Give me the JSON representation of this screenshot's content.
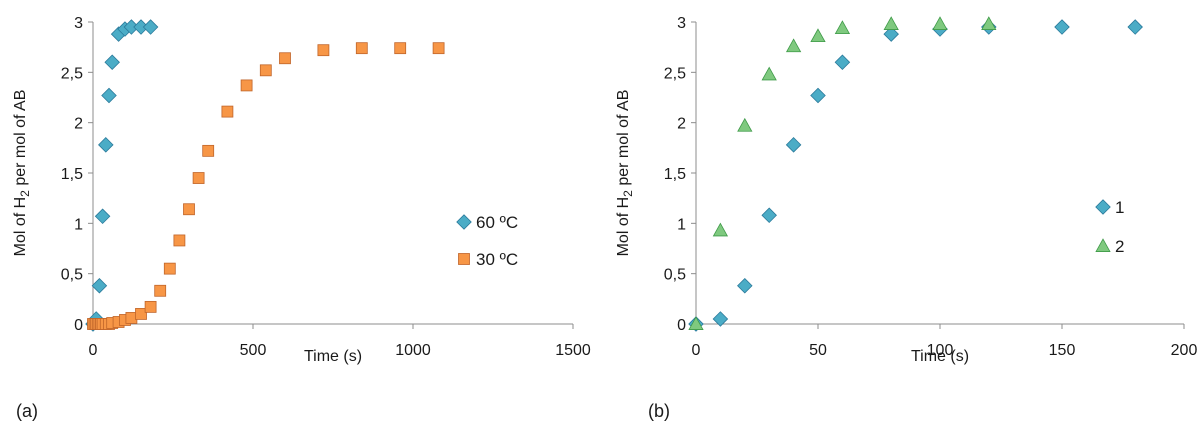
{
  "chart_data": [
    {
      "type": "scatter",
      "panel_label": "(a)",
      "xlabel": "Time (s)",
      "ylabel": {
        "prefix": "Mol of H",
        "subscript": "2",
        "suffix": " per mol of AB"
      },
      "xlim": [
        0,
        1500
      ],
      "ylim": [
        0,
        3
      ],
      "x_ticks": [
        0,
        500,
        1000,
        1500
      ],
      "y_ticks": [
        0,
        0.5,
        1,
        1.5,
        2,
        2.5,
        3
      ],
      "x_tick_labels": [
        "0",
        "500",
        "1000",
        "1500"
      ],
      "y_tick_labels": [
        "0",
        "0,5",
        "1",
        "1,5",
        "2",
        "2,5",
        "3"
      ],
      "grid": false,
      "legend_position": "right",
      "series": [
        {
          "name": "60 ºC",
          "marker": "diamond",
          "color": "#4BACC6",
          "x": [
            0,
            10,
            20,
            30,
            40,
            50,
            60,
            80,
            100,
            120,
            150,
            180
          ],
          "y": [
            0,
            0.05,
            0.38,
            1.07,
            1.78,
            2.27,
            2.6,
            2.88,
            2.93,
            2.95,
            2.95,
            2.95
          ]
        },
        {
          "name": "30 ºC",
          "marker": "square",
          "color": "#F79646",
          "x": [
            0,
            5,
            10,
            15,
            20,
            25,
            30,
            40,
            50,
            60,
            80,
            100,
            120,
            150,
            180,
            210,
            240,
            270,
            300,
            330,
            360,
            420,
            480,
            540,
            600,
            720,
            840,
            960,
            1080
          ],
          "y": [
            0,
            0,
            0,
            0,
            0,
            0,
            0,
            0,
            0,
            0.01,
            0.02,
            0.04,
            0.06,
            0.1,
            0.17,
            0.33,
            0.55,
            0.83,
            1.14,
            1.45,
            1.72,
            2.11,
            2.37,
            2.52,
            2.64,
            2.72,
            2.74,
            2.74,
            2.74
          ]
        }
      ]
    },
    {
      "type": "scatter",
      "panel_label": "(b)",
      "xlabel": "Time (s)",
      "ylabel": {
        "prefix": "Mol of H",
        "subscript": "2",
        "suffix": " per mol of AB"
      },
      "xlim": [
        0,
        200
      ],
      "ylim": [
        0,
        3
      ],
      "x_ticks": [
        0,
        50,
        100,
        150,
        200
      ],
      "y_ticks": [
        0,
        0.5,
        1,
        1.5,
        2,
        2.5,
        3
      ],
      "x_tick_labels": [
        "0",
        "50",
        "100",
        "150",
        "200"
      ],
      "y_tick_labels": [
        "0",
        "0,5",
        "1",
        "1,5",
        "2",
        "2,5",
        "3"
      ],
      "grid": false,
      "legend_position": "right",
      "series": [
        {
          "name": "1",
          "marker": "diamond",
          "color": "#4BACC6",
          "x": [
            0,
            10,
            20,
            30,
            40,
            50,
            60,
            80,
            100,
            120,
            150,
            180
          ],
          "y": [
            0,
            0.05,
            0.38,
            1.08,
            1.78,
            2.27,
            2.6,
            2.88,
            2.93,
            2.95,
            2.95,
            2.95
          ]
        },
        {
          "name": "2",
          "marker": "triangle",
          "color": "#7FC97F",
          "x": [
            0,
            10,
            20,
            30,
            40,
            50,
            60,
            80,
            100,
            120
          ],
          "y": [
            0,
            0.93,
            1.97,
            2.48,
            2.76,
            2.86,
            2.94,
            2.98,
            2.98,
            2.98
          ]
        }
      ]
    }
  ]
}
